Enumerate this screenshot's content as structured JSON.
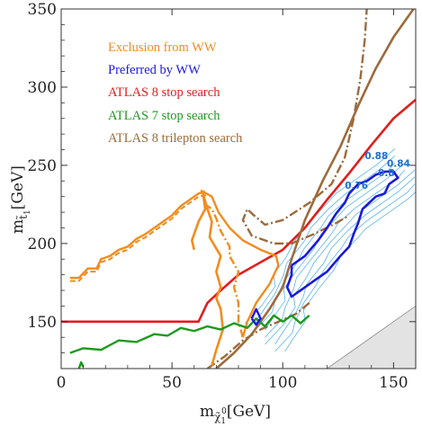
{
  "chart_data": {
    "type": "line",
    "xlabel_main": "m",
    "xlabel_sub": "χ̃",
    "xlabel_sub2": "1",
    "xlabel_sup": "0",
    "xlabel_unit": "[GeV]",
    "ylabel_main": "m",
    "ylabel_sub": "t̃",
    "ylabel_sub2": "1",
    "ylabel_unit": "[GeV]",
    "xlim": [
      0,
      160
    ],
    "ylim": [
      120,
      350
    ],
    "xticks": [
      0,
      50,
      100,
      150
    ],
    "yticks": [
      150,
      200,
      250,
      300,
      350
    ],
    "legend": [
      {
        "label": "Exclusion from WW",
        "color": "#f28c1e",
        "bold": false
      },
      {
        "label": "Preferred by WW",
        "color": "#1a1adb",
        "bold": true
      },
      {
        "label": "ATLAS 8 stop search",
        "color": "#e01e1e",
        "bold": false
      },
      {
        "label": "ATLAS 7 stop search",
        "color": "#1e9a1e",
        "bold": false
      },
      {
        "label": "ATLAS 8 trilepton search",
        "color": "#9c6b3c",
        "bold": false
      }
    ],
    "contour_labels": [
      {
        "text": "0.88",
        "x": 137,
        "y": 254
      },
      {
        "text": "0.84",
        "x": 147,
        "y": 249
      },
      {
        "text": "0.8",
        "x": 143,
        "y": 243
      },
      {
        "text": "0.76",
        "x": 128,
        "y": 235
      }
    ],
    "series": [
      {
        "key": "atlas8stop",
        "color": "#e01e1e",
        "width": 2.6,
        "dash": "",
        "points": [
          [
            0,
            150
          ],
          [
            62,
            150
          ],
          [
            66,
            162
          ],
          [
            72,
            170
          ],
          [
            80,
            180
          ],
          [
            90,
            188
          ],
          [
            100,
            196
          ],
          [
            110,
            210
          ],
          [
            120,
            228
          ],
          [
            130,
            245
          ],
          [
            140,
            263
          ],
          [
            150,
            280
          ],
          [
            160,
            292
          ]
        ]
      },
      {
        "key": "trilep_solid",
        "color": "#9c6b3c",
        "width": 2.6,
        "dash": "",
        "points": [
          [
            70,
            120
          ],
          [
            78,
            130
          ],
          [
            86,
            142
          ],
          [
            94,
            158
          ],
          [
            100,
            172
          ],
          [
            104,
            190
          ],
          [
            110,
            215
          ],
          [
            118,
            240
          ],
          [
            126,
            262
          ],
          [
            134,
            288
          ],
          [
            142,
            312
          ],
          [
            150,
            332
          ],
          [
            160,
            352
          ]
        ]
      },
      {
        "key": "trilep_dash",
        "color": "#9c6b3c",
        "width": 2.4,
        "dash": "10,3,2,3",
        "points": [
          [
            138,
            352
          ],
          [
            137,
            330
          ],
          [
            135,
            305
          ],
          [
            132,
            280
          ],
          [
            128,
            255
          ],
          [
            122,
            238
          ],
          [
            112,
            226
          ],
          [
            100,
            215
          ],
          [
            92,
            212
          ],
          [
            87,
            218
          ],
          [
            84,
            222
          ],
          [
            82,
            215
          ],
          [
            86,
            205
          ],
          [
            96,
            200
          ],
          [
            104,
            200
          ],
          [
            114,
            206
          ],
          [
            124,
            213
          ],
          [
            130,
            218
          ]
        ]
      },
      {
        "key": "trilep_dash_lower",
        "color": "#9c6b3c",
        "width": 2.4,
        "dash": "10,3,2,3",
        "points": [
          [
            66,
            120
          ],
          [
            74,
            128
          ],
          [
            82,
            138
          ],
          [
            90,
            145
          ],
          [
            98,
            150
          ],
          [
            106,
            155
          ],
          [
            112,
            162
          ]
        ]
      },
      {
        "key": "excl_solid",
        "color": "#f28c1e",
        "width": 2.6,
        "dash": "",
        "points": [
          [
            68,
            122
          ],
          [
            70,
            132
          ],
          [
            73,
            145
          ],
          [
            72,
            158
          ],
          [
            70,
            165
          ],
          [
            72,
            172
          ],
          [
            70,
            182
          ],
          [
            72,
            192
          ],
          [
            67,
            204
          ],
          [
            68,
            214
          ],
          [
            66,
            222
          ],
          [
            64,
            232
          ],
          [
            65,
            222
          ],
          [
            62,
            214
          ],
          [
            59,
            202
          ],
          [
            60,
            196
          ]
        ]
      },
      {
        "key": "excl_dash",
        "color": "#f28c1e",
        "width": 2.4,
        "dash": "9,3,2,3",
        "points": [
          [
            82,
            140
          ],
          [
            80,
            150
          ],
          [
            80,
            162
          ],
          [
            78,
            172
          ],
          [
            80,
            182
          ],
          [
            76,
            192
          ],
          [
            76,
            198
          ],
          [
            72,
            208
          ],
          [
            70,
            216
          ],
          [
            68,
            222
          ],
          [
            64,
            226
          ]
        ]
      },
      {
        "key": "excl_right",
        "color": "#f28c1e",
        "width": 2.4,
        "dash": "",
        "points": [
          [
            82,
            140
          ],
          [
            84,
            150
          ],
          [
            88,
            162
          ],
          [
            94,
            174
          ],
          [
            98,
            186
          ],
          [
            97,
            192
          ],
          [
            90,
            196
          ],
          [
            82,
            202
          ],
          [
            76,
            210
          ],
          [
            71,
            220
          ],
          [
            68,
            230
          ],
          [
            63,
            234
          ]
        ]
      },
      {
        "key": "excl_left_outer",
        "color": "#f28c1e",
        "width": 2.4,
        "dash": "",
        "points": [
          [
            4,
            178
          ],
          [
            8,
            178
          ],
          [
            12,
            184
          ],
          [
            16,
            184
          ],
          [
            18,
            190
          ],
          [
            22,
            192
          ],
          [
            26,
            196
          ],
          [
            30,
            198
          ],
          [
            34,
            203
          ],
          [
            38,
            206
          ],
          [
            42,
            210
          ],
          [
            46,
            214
          ],
          [
            50,
            218
          ],
          [
            54,
            224
          ],
          [
            58,
            228
          ],
          [
            62,
            232
          ],
          [
            65,
            233
          ]
        ]
      },
      {
        "key": "excl_left_inner",
        "color": "#f28c1e",
        "width": 2.0,
        "dash": "6,3",
        "points": [
          [
            4,
            176
          ],
          [
            8,
            176
          ],
          [
            12,
            182
          ],
          [
            16,
            182
          ],
          [
            18,
            188
          ],
          [
            22,
            190
          ],
          [
            26,
            194
          ],
          [
            30,
            196
          ],
          [
            34,
            201
          ],
          [
            38,
            204
          ],
          [
            42,
            208
          ],
          [
            46,
            212
          ],
          [
            50,
            216
          ],
          [
            54,
            222
          ],
          [
            58,
            226
          ],
          [
            62,
            230
          ],
          [
            66,
            231
          ]
        ]
      },
      {
        "key": "atlas7stop",
        "color": "#1e9a1e",
        "width": 2.4,
        "dash": "",
        "points": [
          [
            4,
            130
          ],
          [
            10,
            133
          ],
          [
            18,
            132
          ],
          [
            26,
            138
          ],
          [
            34,
            137
          ],
          [
            42,
            142
          ],
          [
            48,
            141
          ],
          [
            54,
            146
          ],
          [
            60,
            144
          ],
          [
            66,
            147
          ],
          [
            72,
            145
          ],
          [
            78,
            149
          ],
          [
            84,
            146
          ],
          [
            88,
            152
          ],
          [
            92,
            147
          ],
          [
            96,
            154
          ],
          [
            100,
            150
          ],
          [
            104,
            154
          ],
          [
            108,
            149
          ],
          [
            112,
            154
          ]
        ]
      },
      {
        "key": "atlas7stop_small",
        "color": "#1e9a1e",
        "width": 2.4,
        "dash": "",
        "points": [
          [
            8,
            120
          ],
          [
            9,
            124
          ],
          [
            10,
            121
          ]
        ]
      },
      {
        "key": "wwpref_outer",
        "color": "#1a1adb",
        "width": 2.6,
        "dash": "",
        "points": [
          [
            104,
            186
          ],
          [
            110,
            192
          ],
          [
            116,
            202
          ],
          [
            120,
            210
          ],
          [
            124,
            219
          ],
          [
            128,
            226
          ],
          [
            130,
            232
          ],
          [
            134,
            238
          ],
          [
            138,
            240
          ],
          [
            142,
            244
          ],
          [
            146,
            246
          ],
          [
            150,
            246
          ],
          [
            152,
            242
          ],
          [
            148,
            238
          ],
          [
            146,
            232
          ],
          [
            142,
            230
          ],
          [
            136,
            222
          ],
          [
            134,
            213
          ],
          [
            132,
            206
          ],
          [
            130,
            198
          ],
          [
            126,
            192
          ],
          [
            120,
            182
          ],
          [
            114,
            176
          ],
          [
            108,
            170
          ],
          [
            104,
            166
          ],
          [
            102,
            172
          ],
          [
            104,
            180
          ],
          [
            104,
            186
          ]
        ]
      },
      {
        "key": "wwpref_small",
        "color": "#1a1adb",
        "width": 2.4,
        "dash": "",
        "points": [
          [
            86,
            152
          ],
          [
            88,
            158
          ],
          [
            90,
            152
          ],
          [
            88,
            148
          ],
          [
            86,
            152
          ]
        ]
      }
    ],
    "light_contours_color": "#5ab4ec",
    "shaded_region_color": "#e3e3e3"
  }
}
